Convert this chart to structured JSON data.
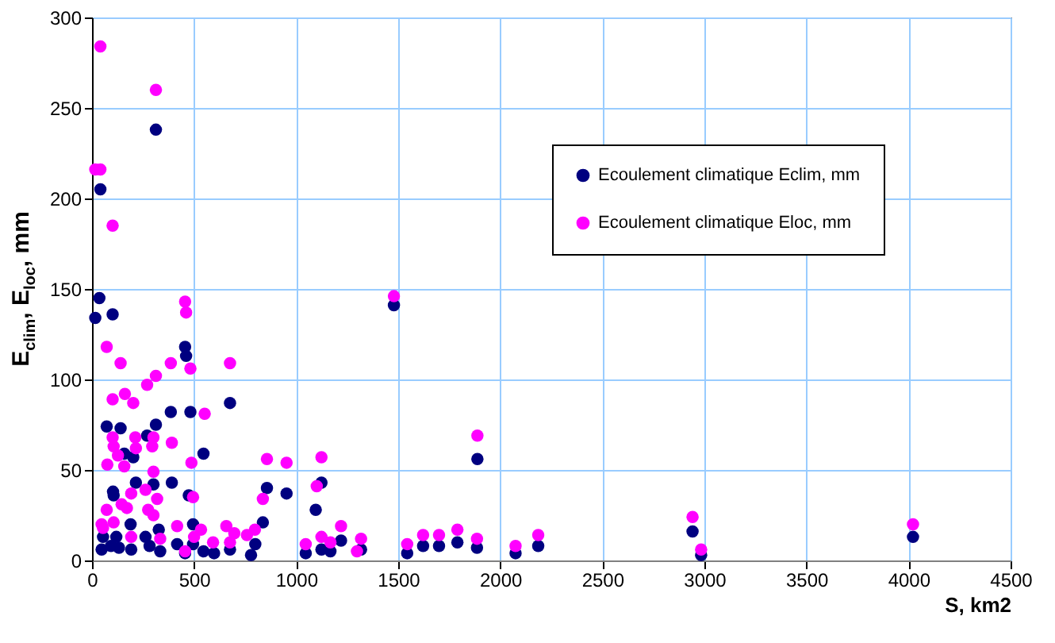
{
  "chart_data": {
    "type": "scatter",
    "xlabel": "S, km2",
    "ylabel": "E$_{clim}$, E$_{loc}$, mm",
    "xlim": [
      0,
      4500
    ],
    "xticks": [
      0,
      500,
      1000,
      1500,
      2000,
      2500,
      3000,
      3500,
      4000,
      4500
    ],
    "ylim": [
      0,
      300
    ],
    "yticks": [
      0,
      50,
      100,
      150,
      200,
      250,
      300
    ],
    "grid": true,
    "legend": "top right",
    "marker": "circle",
    "series": [
      {
        "name": "Ecoulement climatique Eclim, mm",
        "color": "#000080",
        "x": [
          313,
          41,
          36,
          16,
          101,
          456,
          461,
          676,
          386,
          482,
          72,
          140,
          313,
          270,
          158,
          202,
          546,
          391,
          215,
          103,
          106,
          301,
          474,
          857,
          953,
          1124,
          1096,
          189,
          837,
          1220,
          1047,
          1124,
          1168,
          1318,
          779,
          800,
          47,
          93,
          132,
          192,
          282,
          334,
          417,
          456,
          495,
          546,
          598,
          676,
          54,
          119,
          262,
          327,
          495,
          1479,
          1888,
          1544,
          1622,
          1700,
          1790,
          1886,
          2075,
          2186,
          2942,
          2984,
          4022
        ],
        "values": [
          238,
          205,
          145,
          134,
          136,
          118,
          113,
          87,
          82,
          82,
          74,
          73,
          75,
          69,
          59,
          57,
          59,
          43,
          43,
          38,
          36,
          42,
          36,
          40,
          37,
          43,
          28,
          20,
          21,
          11,
          4,
          6,
          5,
          6,
          3,
          9,
          6,
          8,
          7,
          6,
          8,
          5,
          9,
          4,
          9,
          5,
          4,
          6,
          13,
          13,
          13,
          17,
          20,
          141,
          56,
          4,
          8,
          8,
          10,
          7,
          4,
          8,
          16,
          3,
          13
        ]
      },
      {
        "name": "Ecoulement climatique Eloc, mm",
        "color": "#ff00ff",
        "x": [
          41,
          313,
          16,
          41,
          101,
          72,
          140,
          456,
          461,
          386,
          313,
          270,
          482,
          676,
          101,
          161,
          202,
          552,
          212,
          301,
          101,
          106,
          295,
          215,
          391,
          127,
          75,
          158,
          487,
          301,
          857,
          953,
          1124,
          262,
          192,
          319,
          495,
          1101,
          837,
          145,
          171,
          72,
          275,
          301,
          54,
          106,
          417,
          658,
          697,
          798,
          759,
          1220,
          1124,
          1168,
          1318,
          1047,
          1298,
          534,
          593,
          500,
          192,
          334,
          456,
          676,
          47,
          1479,
          1888,
          1544,
          1622,
          1700,
          1790,
          1886,
          2075,
          2186,
          2942,
          2984,
          4022
        ],
        "values": [
          284,
          260,
          216,
          216,
          185,
          118,
          109,
          143,
          137,
          109,
          102,
          97,
          106,
          109,
          89,
          92,
          87,
          81,
          68,
          68,
          68,
          63,
          63,
          62,
          65,
          58,
          53,
          52,
          54,
          49,
          56,
          54,
          57,
          39,
          37,
          34,
          35,
          41,
          34,
          31,
          29,
          28,
          28,
          25,
          18,
          21,
          19,
          19,
          15,
          17,
          14,
          19,
          13,
          10,
          12,
          9,
          5,
          17,
          10,
          13,
          13,
          12,
          5,
          10,
          20,
          146,
          69,
          9,
          14,
          14,
          17,
          12,
          8,
          14,
          24,
          6,
          20
        ]
      }
    ]
  }
}
